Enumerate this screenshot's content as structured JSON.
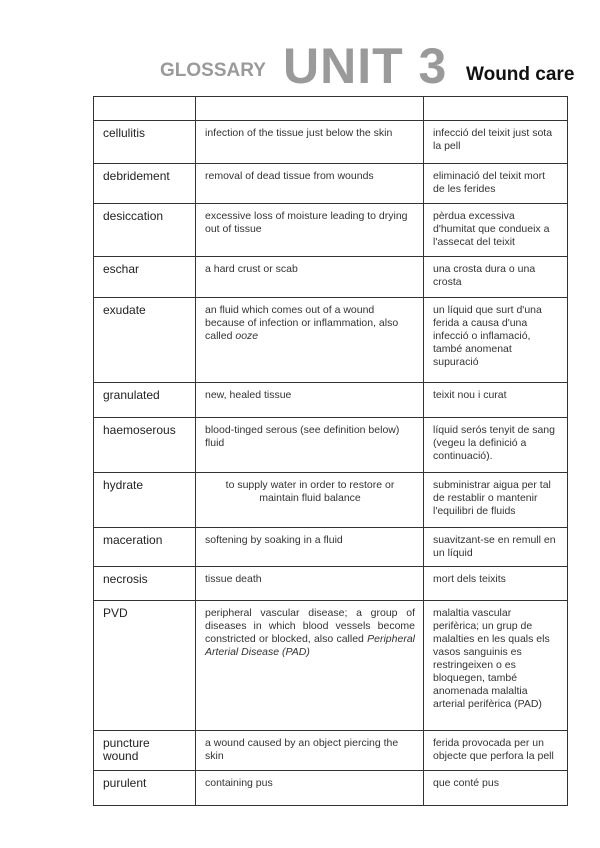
{
  "header": {
    "glossary": "GLOSSARY",
    "unit": "UNIT 3",
    "subtitle": "Wound care"
  },
  "table": {
    "header_row": [
      "",
      "",
      ""
    ],
    "rows": [
      {
        "term": "cellulitis",
        "definition": "infection of the tissue just below the skin",
        "catalan": "infecció del teixit just sota la pell"
      },
      {
        "term": "debridement",
        "definition": "removal of dead tissue from wounds",
        "catalan": "eliminació del teixit mort de les ferides"
      },
      {
        "term": "desiccation",
        "definition": "excessive loss of moisture leading to drying out of tissue",
        "catalan": "pèrdua excessiva d'humitat que condueix a l'assecat del teixit"
      },
      {
        "term": "eschar",
        "definition": "a hard crust or scab",
        "catalan": "una crosta dura o una crosta"
      },
      {
        "term": "exudate",
        "definition": "an fluid which comes out of a wound because of infection or  inflammation, also called ",
        "definition_italic": "ooze",
        "catalan": "un líquid que surt d'una ferida a causa d'una infecció o inflamació, també anomenat supuració"
      },
      {
        "term": "granulated",
        "definition": "new, healed tissue",
        "catalan": "teixit nou i curat"
      },
      {
        "term": "haemoserous",
        "definition": "blood-tinged serous (see definition below) fluid",
        "catalan": "líquid serós tenyit de sang (vegeu la definició a continuació)."
      },
      {
        "term": "hydrate",
        "definition": "to supply water in order to restore or maintain fluid balance",
        "catalan": "subministrar aigua per tal de restablir o mantenir l'equilibri de fluids"
      },
      {
        "term": "maceration",
        "definition": "softening by soaking in a fluid",
        "catalan": "suavitzant-se en remull en un líquid"
      },
      {
        "term": "necrosis",
        "definition": "tissue death",
        "catalan": "mort dels teixits"
      },
      {
        "term": "PVD",
        "definition": "peripheral vascular disease; a group of diseases in which  blood vessels become constricted or blocked, also called ",
        "definition_italic": "Peripheral Arterial Disease (PAD)",
        "catalan": "malaltia vascular perifèrica; un grup de malalties en les quals els vasos sanguinis es restringeixen o es bloquegen, també anomenada malaltia arterial perifèrica (PAD)"
      },
      {
        "term": "puncture wound",
        "definition": "a wound caused by an object piercing the skin",
        "catalan": "ferida provocada per un objecte que perfora la pell"
      },
      {
        "term": "purulent",
        "definition": "containing pus",
        "catalan": "que conté pus"
      }
    ]
  }
}
